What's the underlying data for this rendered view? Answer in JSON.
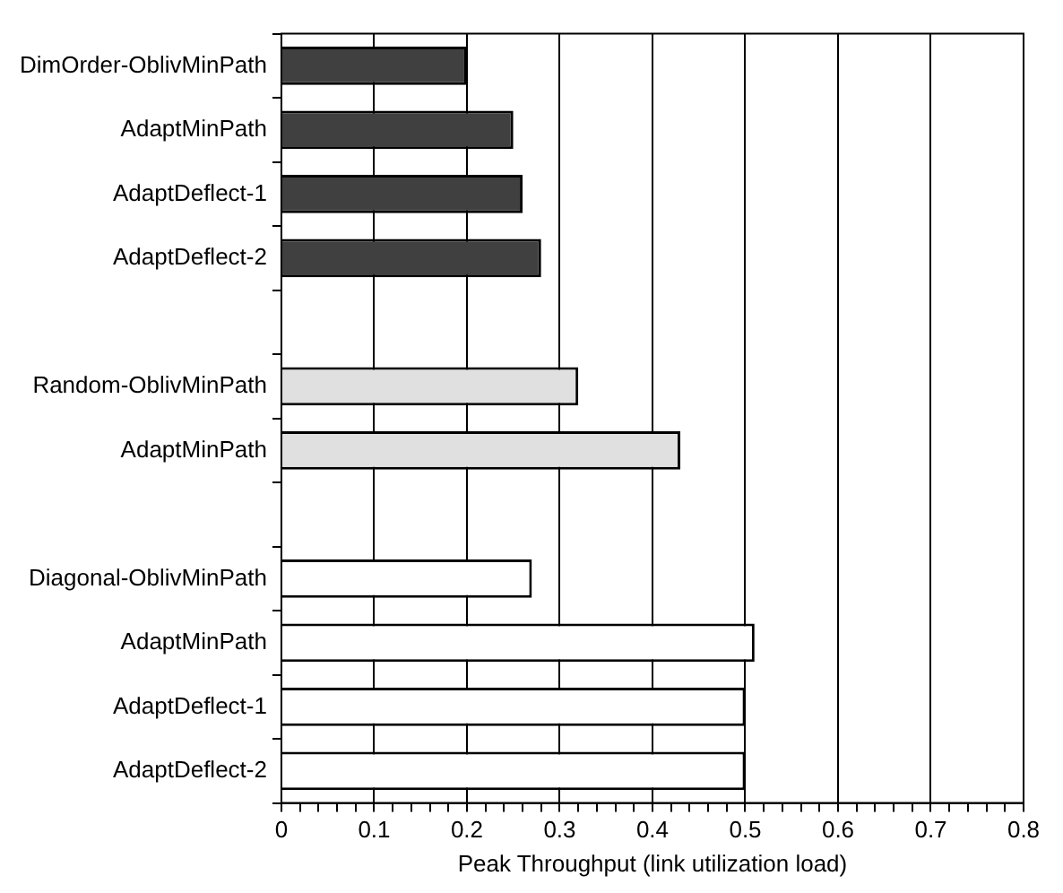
{
  "chart_data": {
    "type": "bar",
    "orientation": "horizontal",
    "xlabel": "Peak Throughput (link utilization load)",
    "categories": [
      "DimOrder-OblivMinPath",
      "AdaptMinPath",
      "AdaptDeflect-1",
      "AdaptDeflect-2",
      null,
      "Random-OblivMinPath",
      "AdaptMinPath",
      null,
      "Diagonal-OblivMinPath",
      "AdaptMinPath",
      "AdaptDeflect-1",
      "AdaptDeflect-2"
    ],
    "values": [
      0.2,
      0.25,
      0.26,
      0.28,
      null,
      0.32,
      0.43,
      null,
      0.27,
      0.51,
      0.5,
      0.5
    ],
    "colors": [
      "#404040",
      "#404040",
      "#404040",
      "#404040",
      "#ffffff",
      "#e0e0e0",
      "#e0e0e0",
      "#ffffff",
      "#ffffff",
      "#ffffff",
      "#ffffff",
      "#ffffff"
    ],
    "xlim": [
      0,
      0.8
    ],
    "xticks": [
      0,
      {
        "value": 0.02,
        "label": null
      },
      {
        "value": 0.04,
        "label": null
      },
      {
        "value": 0.06,
        "label": null
      },
      {
        "value": 0.08,
        "label": null
      },
      0.1,
      {
        "value": 0.12,
        "label": null
      },
      {
        "value": 0.14,
        "label": null
      },
      {
        "value": 0.16,
        "label": null
      },
      {
        "value": 0.18,
        "label": null
      },
      0.2,
      {
        "value": 0.22,
        "label": null
      },
      {
        "value": 0.24,
        "label": null
      },
      {
        "value": 0.26,
        "label": null
      },
      {
        "value": 0.28,
        "label": null
      },
      0.3,
      {
        "value": 0.32,
        "label": null
      },
      {
        "value": 0.34,
        "label": null
      },
      {
        "value": 0.36,
        "label": null
      },
      {
        "value": 0.38,
        "label": null
      },
      0.4,
      {
        "value": 0.42,
        "label": null
      },
      {
        "value": 0.44,
        "label": null
      },
      {
        "value": 0.46,
        "label": null
      },
      {
        "value": 0.48,
        "label": null
      },
      0.5,
      {
        "value": 0.52,
        "label": null
      },
      {
        "value": 0.54,
        "label": null
      },
      {
        "value": 0.56,
        "label": null
      },
      {
        "value": 0.58,
        "label": null
      },
      0.6,
      {
        "value": 0.62,
        "label": null
      },
      {
        "value": 0.64,
        "label": null
      },
      {
        "value": 0.66,
        "label": null
      },
      {
        "value": 0.68,
        "label": null
      },
      0.7,
      {
        "value": 0.72,
        "label": null
      },
      {
        "value": 0.74,
        "label": null
      },
      {
        "value": 0.76,
        "label": null
      },
      {
        "value": 0.78,
        "label": null
      },
      0.8
    ],
    "grid": "x",
    "legend": false
  }
}
